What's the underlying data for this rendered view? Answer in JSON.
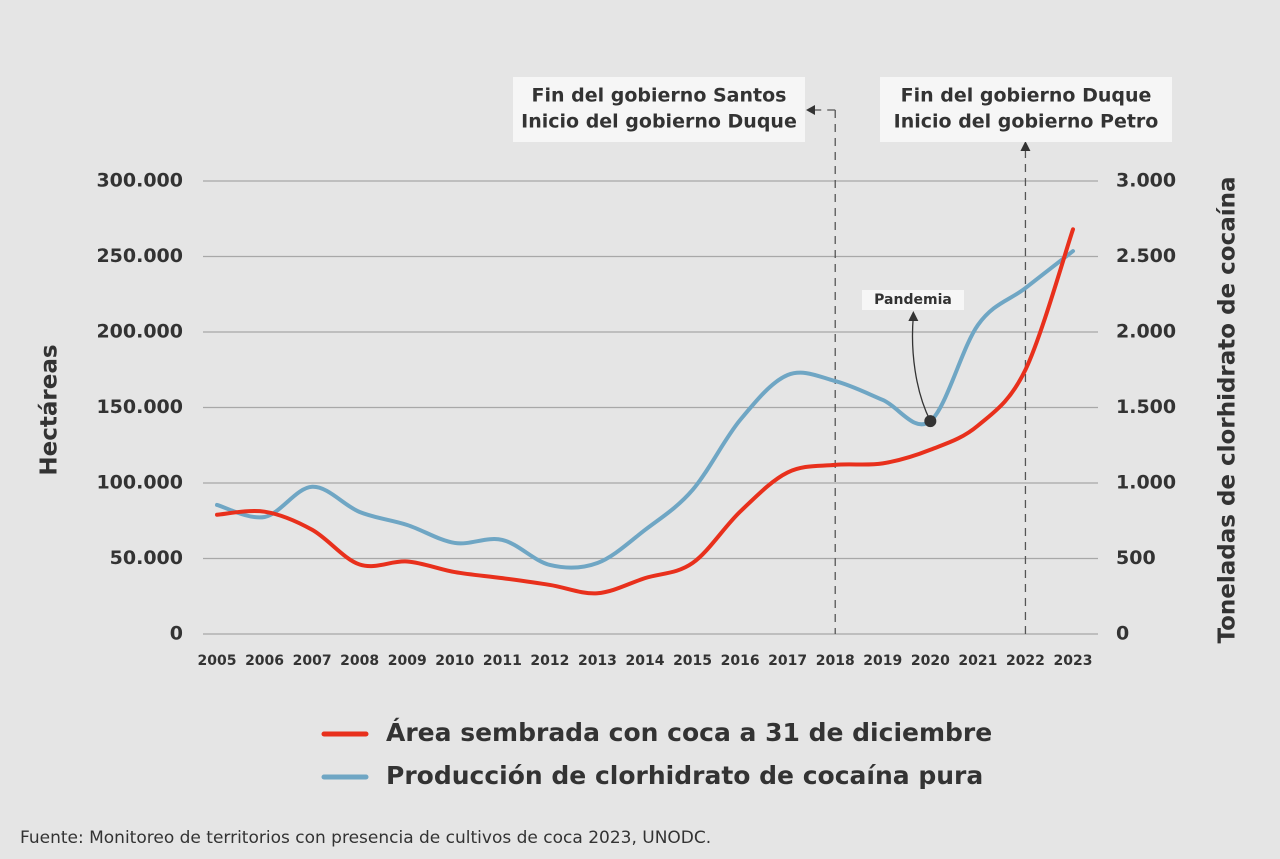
{
  "chart_data": {
    "type": "line",
    "categories": [
      "2005",
      "2006",
      "2007",
      "2008",
      "2009",
      "2010",
      "2011",
      "2012",
      "2013",
      "2014",
      "2015",
      "2016",
      "2017",
      "2018",
      "2019",
      "2020",
      "2021",
      "2022",
      "2023"
    ],
    "y_label": "Hectáreas",
    "y2_label": "Toneladas de clorhidrato de cocaína",
    "ylim": [
      0,
      300000
    ],
    "yticks": [
      0,
      {
        "value": 50000,
        "label": "50.000"
      },
      {
        "value": 100000,
        "label": "100.000"
      },
      {
        "value": 150000,
        "label": "150.000"
      },
      {
        "value": 200000,
        "label": "200.000"
      },
      {
        "value": 250000,
        "label": "250.000"
      },
      {
        "value": 300000,
        "label": "300.000"
      }
    ],
    "y2lim": [
      0,
      3000
    ],
    "y2ticks": [
      0,
      500,
      {
        "value": 1000,
        "label": "1.000"
      },
      {
        "value": 1500,
        "label": "1.500"
      },
      {
        "value": 2000,
        "label": "2.000"
      },
      {
        "value": 2500,
        "label": "2.500"
      },
      {
        "value": 3000,
        "label": "3.000"
      }
    ],
    "grid": true,
    "series": [
      {
        "name": "Área sembrada con coca a 31 de diciembre",
        "color": "#e8301c",
        "values": [
          79000,
          81000,
          69000,
          46000,
          48000,
          41000,
          37000,
          32500,
          27000,
          37000,
          47000,
          81000,
          107000,
          112000,
          113000,
          122000,
          138000,
          175000,
          268000
        ]
      },
      {
        "name": "Producción de clorhidrato de cocaína pura",
        "color": "#6fa6c4",
        "axis": "y2",
        "values": [
          855,
          775,
          975,
          808,
          722,
          603,
          623,
          457,
          470,
          689,
          954,
          1417,
          1715,
          1675,
          1550,
          1410,
          2046,
          2291,
          2536
        ]
      }
    ],
    "annotations": [
      {
        "lines": [
          "Fin del gobierno Santos",
          "Inicio del gobierno Duque"
        ]
      },
      {
        "lines": [
          "Fin del gobierno Duque",
          "Inicio del gobierno Petro"
        ]
      },
      {
        "lines": [
          "Pandemia"
        ]
      }
    ],
    "source": "Fuente: Monitoreo de territorios con presencia de cultivos de coca 2023, UNODC."
  }
}
